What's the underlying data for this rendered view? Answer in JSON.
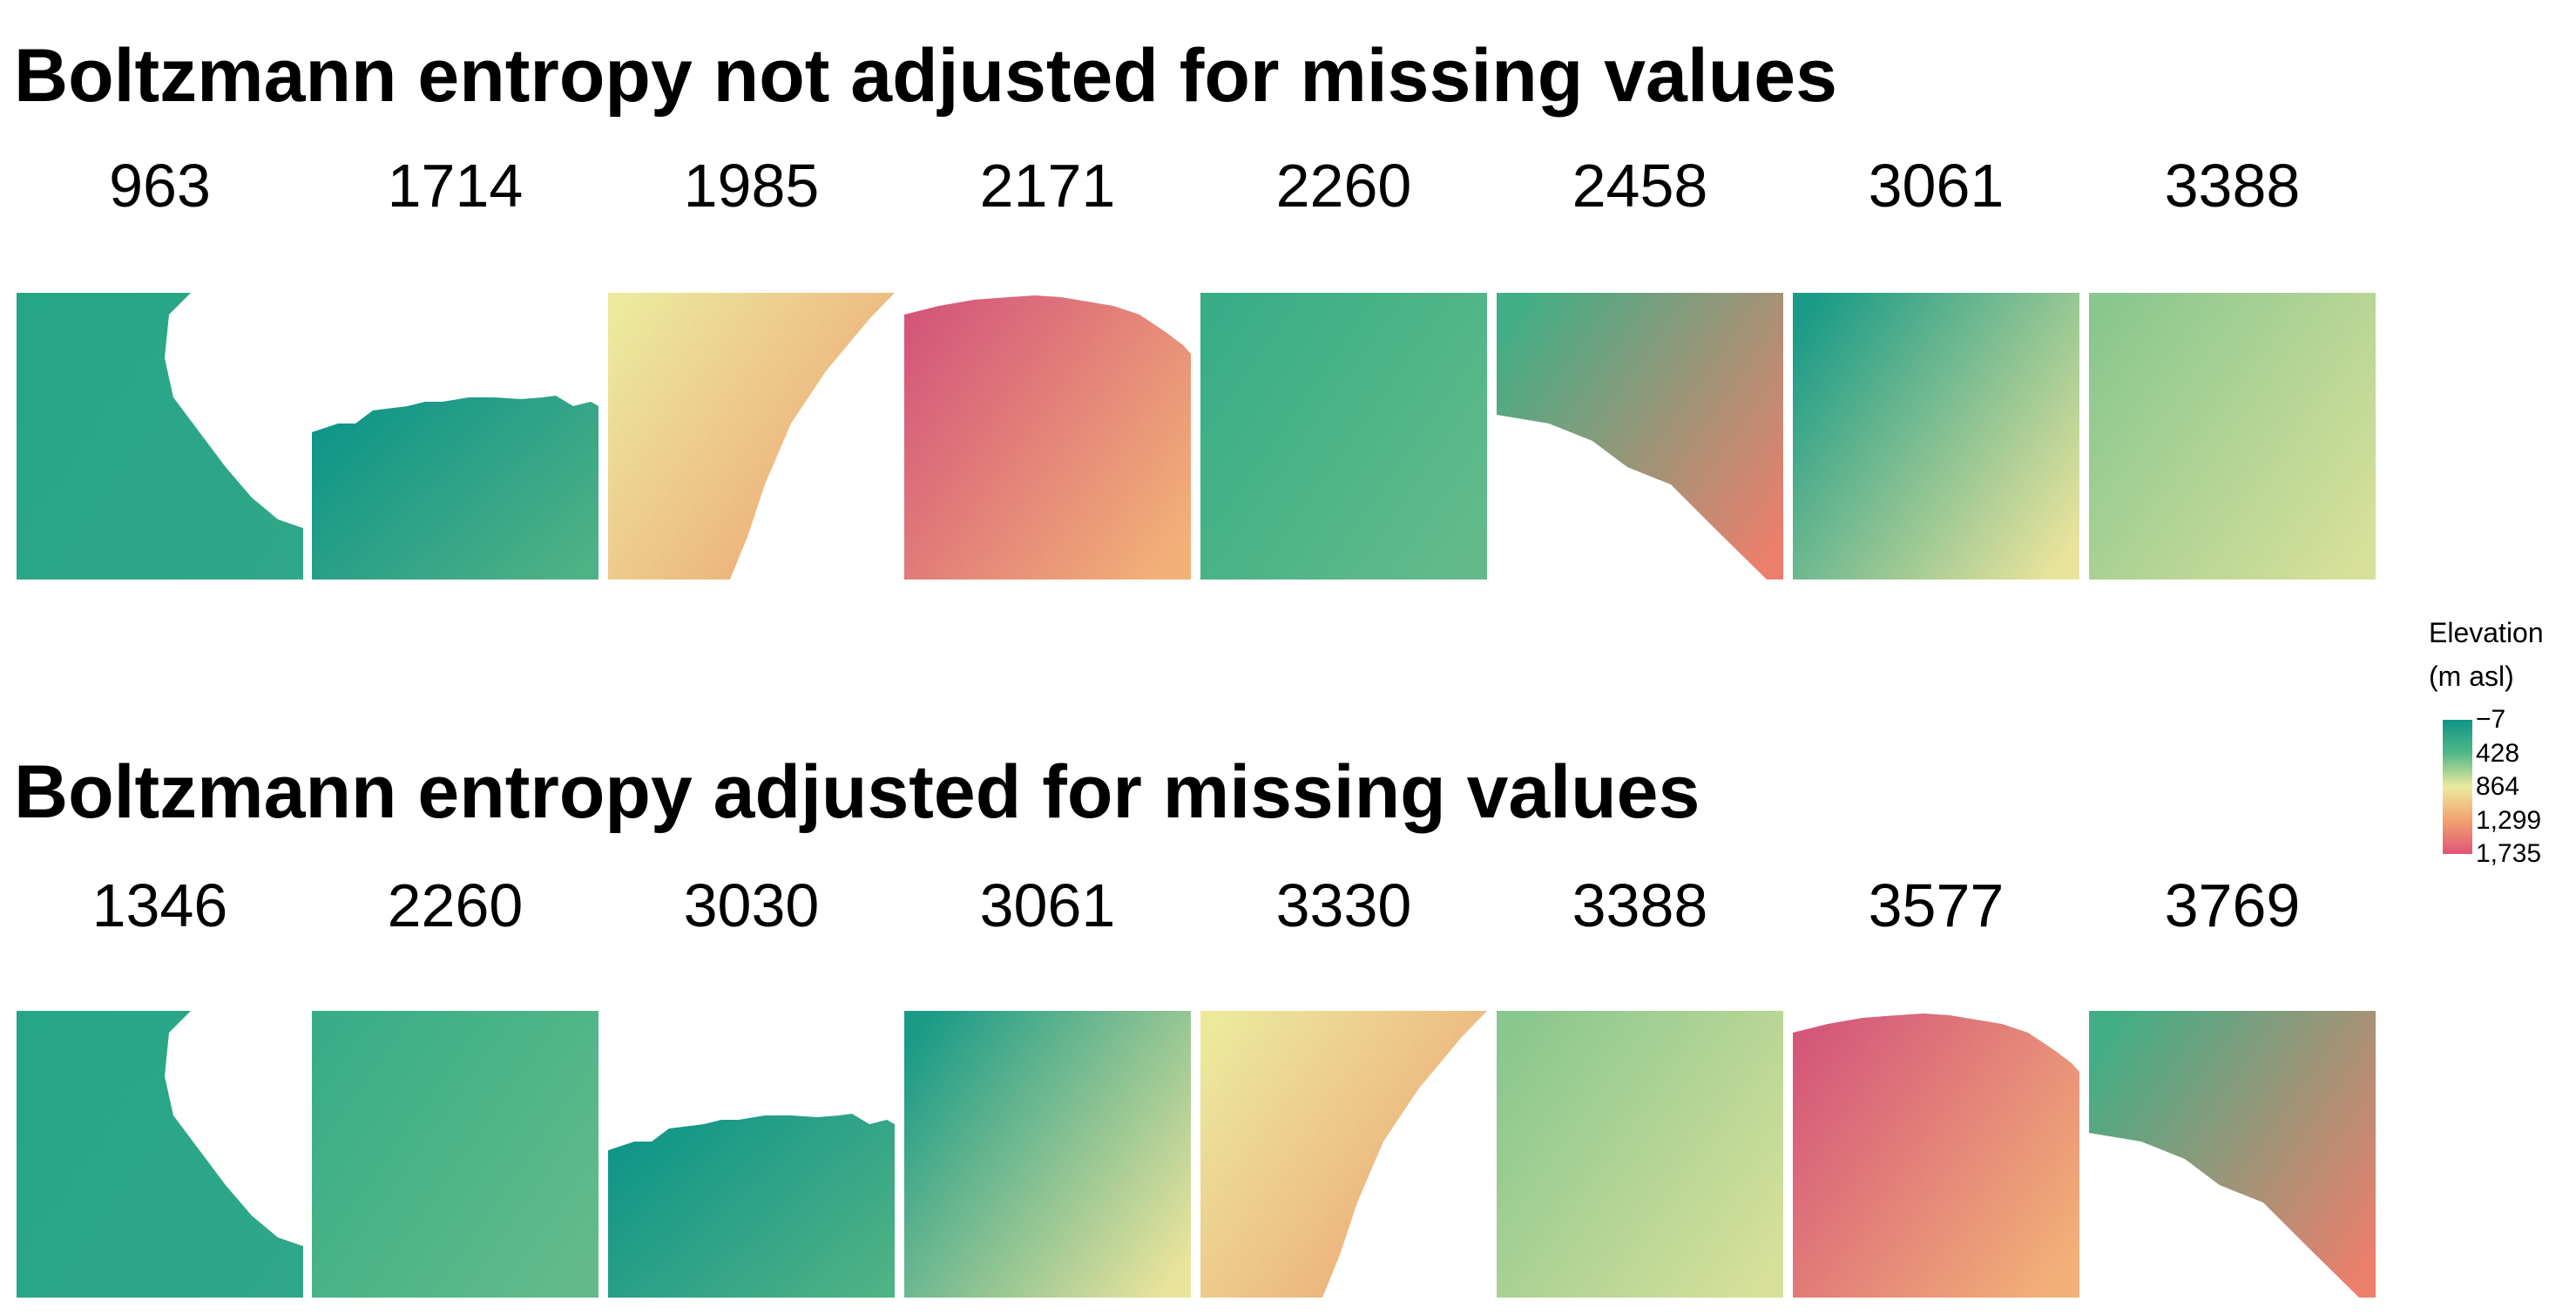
{
  "chart_data": {
    "type": "heatmap",
    "panels": [
      {
        "title": "Boltzmann entropy not adjusted for missing values",
        "tiles": [
          {
            "label": "963",
            "shape": "coast",
            "colors": [
              "#27a587",
              "#2fa788"
            ]
          },
          {
            "label": "1714",
            "shape": "valley",
            "colors": [
              "#0d9488",
              "#4fb186"
            ]
          },
          {
            "label": "1985",
            "shape": "triangle",
            "colors": [
              "#ece89c",
              "#ee9f72"
            ]
          },
          {
            "label": "2171",
            "shape": "hill",
            "colors": [
              "#d4577a",
              "#f3b178"
            ]
          },
          {
            "label": "2260",
            "shape": "full",
            "colors": [
              "#38ad88",
              "#63bb89"
            ]
          },
          {
            "label": "2458",
            "shape": "band",
            "colors": [
              "#41ae86",
              "#eb7f6c"
            ]
          },
          {
            "label": "3061",
            "shape": "full",
            "colors": [
              "#1b9b87",
              "#e9e39c"
            ]
          },
          {
            "label": "3388",
            "shape": "full",
            "colors": [
              "#8ac78f",
              "#d7e09a"
            ]
          }
        ]
      },
      {
        "title": "Boltzmann entropy adjusted for missing values",
        "tiles": [
          {
            "label": "1346",
            "shape": "coast",
            "colors": [
              "#27a587",
              "#2fa788"
            ]
          },
          {
            "label": "2260",
            "shape": "full",
            "colors": [
              "#38ad88",
              "#63bb89"
            ]
          },
          {
            "label": "3030",
            "shape": "valley",
            "colors": [
              "#0d9488",
              "#4fb186"
            ]
          },
          {
            "label": "3061",
            "shape": "full",
            "colors": [
              "#1b9b87",
              "#e9e39c"
            ]
          },
          {
            "label": "3330",
            "shape": "triangle",
            "colors": [
              "#ece89c",
              "#ee9f72"
            ]
          },
          {
            "label": "3388",
            "shape": "full",
            "colors": [
              "#8ac78f",
              "#d7e09a"
            ]
          },
          {
            "label": "3577",
            "shape": "hill",
            "colors": [
              "#d4577a",
              "#f3b178"
            ]
          },
          {
            "label": "3769",
            "shape": "band",
            "colors": [
              "#41ae86",
              "#eb7f6c"
            ]
          }
        ]
      }
    ],
    "legend": {
      "title_line1": "Elevation",
      "title_line2": "(m asl)",
      "ticks": [
        "−7",
        "428",
        "864",
        "1,299",
        "1,735"
      ],
      "range": [
        -7,
        1735
      ],
      "colors": [
        "#0f9487",
        "#52b888",
        "#ecea9e",
        "#f2a16e",
        "#e05478"
      ]
    }
  }
}
